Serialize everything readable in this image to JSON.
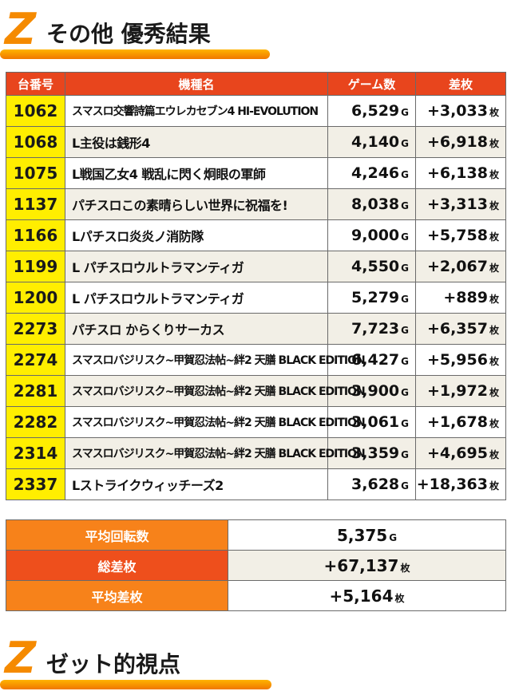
{
  "header1": {
    "z": "Z",
    "title": "その他 優秀結果"
  },
  "columns": {
    "machine_no": "台番号",
    "model": "機種名",
    "games": "ゲーム数",
    "diff": "差枚"
  },
  "units": {
    "games": "G",
    "diff": "枚"
  },
  "rows": [
    {
      "no": "1062",
      "model": "スマスロ交響詩篇エウレカセブン4 HI-EVOLUTION",
      "games": "6,529",
      "diff": "+3,033"
    },
    {
      "no": "1068",
      "model": "L主役は銭形4",
      "games": "4,140",
      "diff": "+6,918"
    },
    {
      "no": "1075",
      "model": "L戦国乙女4 戦乱に閃く炯眼の軍師",
      "games": "4,246",
      "diff": "+6,138"
    },
    {
      "no": "1137",
      "model": "パチスロこの素晴らしい世界に祝福を!",
      "games": "8,038",
      "diff": "+3,313"
    },
    {
      "no": "1166",
      "model": "Lパチスロ炎炎ノ消防隊",
      "games": "9,000",
      "diff": "+5,758"
    },
    {
      "no": "1199",
      "model": "L パチスロウルトラマンティガ",
      "games": "4,550",
      "diff": "+2,067"
    },
    {
      "no": "1200",
      "model": "L パチスロウルトラマンティガ",
      "games": "5,279",
      "diff": "+889"
    },
    {
      "no": "2273",
      "model": "パチスロ からくりサーカス",
      "games": "7,723",
      "diff": "+6,357"
    },
    {
      "no": "2274",
      "model": "スマスロバジリスク~甲賀忍法帖~絆2 天膳 BLACK EDITION",
      "games": "6,427",
      "diff": "+5,956"
    },
    {
      "no": "2281",
      "model": "スマスロバジリスク~甲賀忍法帖~絆2 天膳 BLACK EDITION",
      "games": "3,900",
      "diff": "+1,972"
    },
    {
      "no": "2282",
      "model": "スマスロバジリスク~甲賀忍法帖~絆2 天膳 BLACK EDITION",
      "games": "3,061",
      "diff": "+1,678"
    },
    {
      "no": "2314",
      "model": "スマスロバジリスク~甲賀忍法帖~絆2 天膳 BLACK EDITION",
      "games": "3,359",
      "diff": "+4,695"
    },
    {
      "no": "2337",
      "model": "Lストライクウィッチーズ2",
      "games": "3,628",
      "diff": "+18,363"
    }
  ],
  "summary": {
    "avg_spins_label": "平均回転数",
    "avg_spins": "5,375",
    "total_diff_label": "総差枚",
    "total_diff": "+67,137",
    "avg_diff_label": "平均差枚",
    "avg_diff": "+5,164"
  },
  "header2": {
    "z": "Z",
    "title": "ゼット的視点"
  }
}
